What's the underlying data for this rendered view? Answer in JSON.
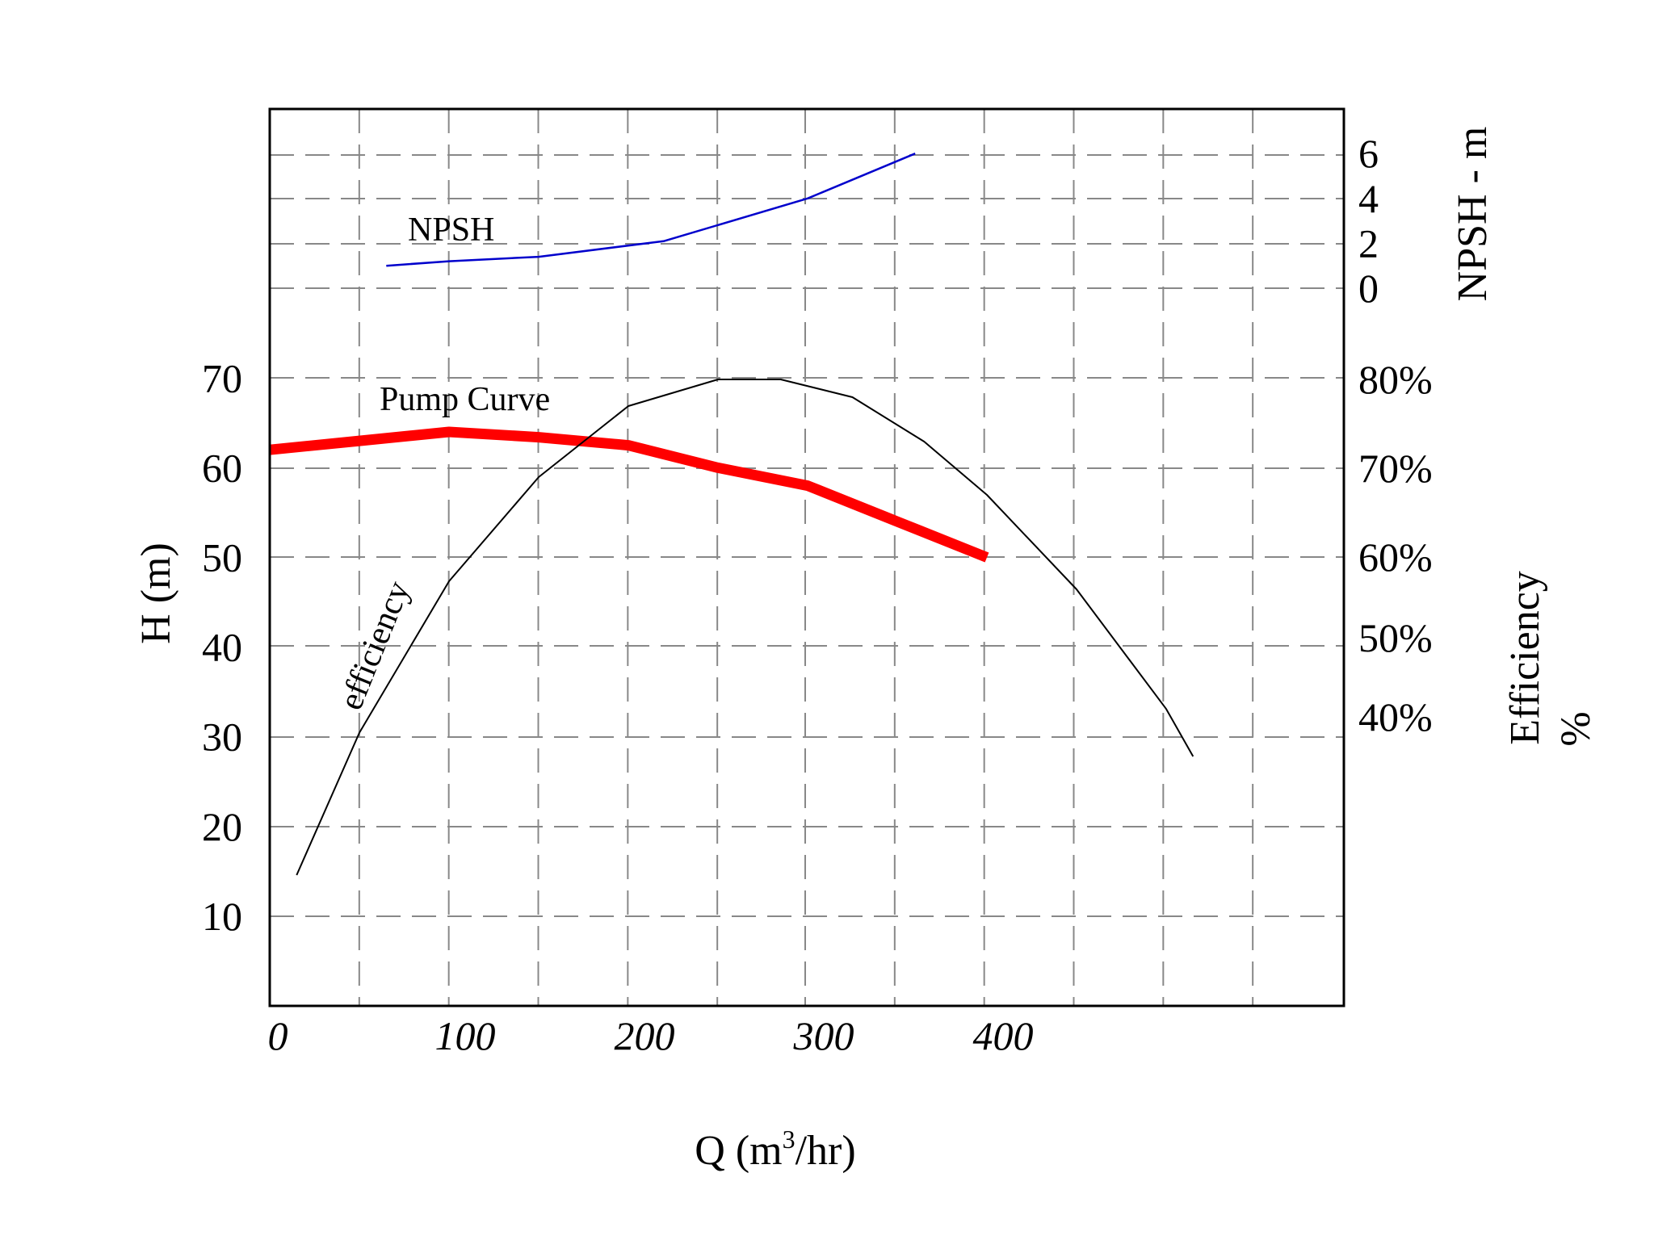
{
  "chart_data": {
    "type": "line",
    "xlabel": "Q (m3/hr)",
    "x_ticks": [
      "0",
      "100",
      "200",
      "300",
      "400"
    ],
    "xlim": [
      0,
      600
    ],
    "grid": true,
    "axes": {
      "head": {
        "label": "H (m)",
        "ticks": [
          "10",
          "20",
          "30",
          "40",
          "50",
          "60",
          "70"
        ],
        "lim": [
          0,
          100
        ]
      },
      "npsh": {
        "label": "NPSH - m",
        "ticks": [
          "0",
          "2",
          "4",
          "6"
        ],
        "lim": [
          0,
          6
        ]
      },
      "efficiency": {
        "label_line1": "Efficiency",
        "label_line2": "%",
        "ticks": [
          "40%",
          "50%",
          "60%",
          "70%",
          "80%"
        ]
      }
    },
    "series": [
      {
        "name": "Pump Curve",
        "axis": "head",
        "color": "#ff0000",
        "x": [
          0,
          50,
          100,
          150,
          200,
          250,
          300,
          350,
          400
        ],
        "y": [
          62,
          63,
          64,
          63.4,
          62.5,
          60,
          58,
          54,
          50
        ]
      },
      {
        "name": "NPSH",
        "axis": "npsh",
        "color": "#0000cc",
        "x": [
          65,
          100,
          150,
          220,
          300,
          360
        ],
        "y": [
          1.0,
          1.2,
          1.4,
          2.1,
          4.0,
          6.0
        ]
      },
      {
        "name": "efficiency",
        "axis": "efficiency",
        "color": "#000000",
        "x": [
          15,
          50,
          100,
          150,
          200,
          250,
          285,
          325,
          365,
          400,
          450,
          500,
          515
        ],
        "y": [
          20,
          38,
          57,
          69,
          77,
          80,
          80,
          78,
          73,
          67,
          56,
          41,
          35
        ]
      }
    ]
  }
}
